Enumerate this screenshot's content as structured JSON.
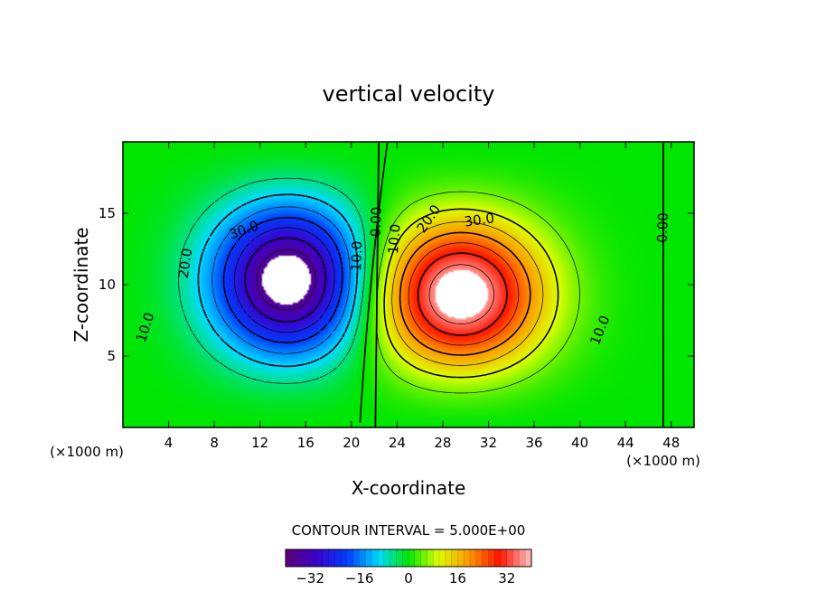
{
  "chart_data": {
    "type": "heatmap",
    "title": "vertical velocity",
    "xlabel": "X-coordinate",
    "ylabel": "Z-coordinate",
    "x_unit": "(×1000 m)",
    "y_unit": "(×1000 m)",
    "xlim": [
      0,
      50
    ],
    "ylim": [
      0,
      20
    ],
    "x_ticks": [
      4,
      8,
      12,
      16,
      20,
      24,
      28,
      32,
      36,
      40,
      44,
      48
    ],
    "y_ticks": [
      5,
      10,
      15
    ],
    "contour_interval_text": "CONTOUR INTERVAL = 5.000E+00",
    "contour_interval": 5,
    "colorbar": {
      "min": -40,
      "max": 40,
      "ticks": [
        -32,
        -16,
        0,
        16,
        32
      ]
    },
    "colors": {
      "negative": "#3a00c8",
      "zero": "#00e000",
      "positive": "#ff1e00",
      "missing": "#ffffff"
    },
    "field": {
      "updraft_center": [
        29.5,
        9
      ],
      "updraft_max": 42,
      "downdraft_center": [
        14.5,
        10.5
      ],
      "downdraft_min": -42,
      "note_blank": "values beyond colorbar range shown blank"
    },
    "contour_labels": [
      {
        "text": "10.0",
        "x": 2.0,
        "y": 7.0,
        "angle": 72
      },
      {
        "text": "20.0",
        "x": 5.5,
        "y": 11.5,
        "angle": 82
      },
      {
        "text": "30.0",
        "x": 10.6,
        "y": 13.8,
        "angle": 20
      },
      {
        "text": "10.0",
        "x": 20.5,
        "y": 12.0,
        "angle": 88
      },
      {
        "text": "0.00",
        "x": 22.2,
        "y": 14.4,
        "angle": 88
      },
      {
        "text": "10.0",
        "x": 23.8,
        "y": 13.2,
        "angle": 85
      },
      {
        "text": "20.0",
        "x": 26.8,
        "y": 14.6,
        "angle": 55
      },
      {
        "text": "30.0",
        "x": 31.2,
        "y": 14.5,
        "angle": 8
      },
      {
        "text": "10.0",
        "x": 41.8,
        "y": 6.8,
        "angle": 68
      },
      {
        "text": "0.00",
        "x": 47.3,
        "y": 14.0,
        "angle": 88
      }
    ]
  }
}
